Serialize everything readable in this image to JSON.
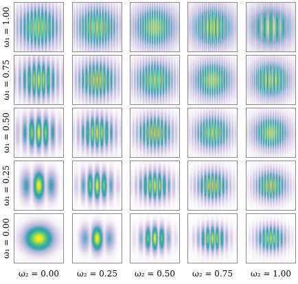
{
  "chart_data": {
    "type": "heatmap",
    "grid_layout": "5x5 small multiples",
    "row_parameter": "ω₁",
    "column_parameter": "ω₂",
    "row_values": [
      1.0,
      0.75,
      0.5,
      0.25,
      0.0
    ],
    "column_values": [
      0.0,
      0.25,
      0.5,
      0.75,
      1.0
    ],
    "row_labels": [
      "ω₁ = 1.00",
      "ω₁ = 0.75",
      "ω₁ = 0.50",
      "ω₁ = 0.25",
      "ω₁ = 0.00"
    ],
    "column_labels": [
      "ω₂ = 0.00",
      "ω₂ = 0.25",
      "ω₂ = 0.50",
      "ω₂ = 0.75",
      "ω₂ = 1.00"
    ],
    "colormap": [
      "#ffffff",
      "#d9cde6",
      "#9bb6d8",
      "#3f9cb0",
      "#2fb29a",
      "#7fcf62",
      "#ffee10"
    ],
    "frame_color": "#888888",
    "axis_ticks": false
  }
}
